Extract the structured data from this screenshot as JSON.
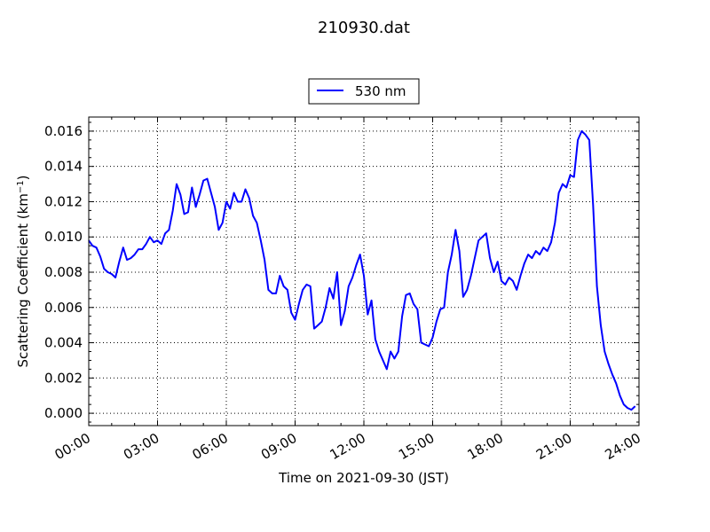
{
  "chart_data": {
    "type": "line",
    "title": "210930.dat",
    "xlabel": "Time on 2021-09-30 (JST)",
    "ylabel": "Scattering Coefficient (km",
    "ylabel_exponent": "−1",
    "ylabel_close": ")",
    "xlim": [
      "00:00",
      "24:00"
    ],
    "ylim": [
      -0.0007,
      0.0168
    ],
    "x_ticks": [
      "00:00",
      "03:00",
      "06:00",
      "09:00",
      "12:00",
      "15:00",
      "18:00",
      "21:00",
      "24:00"
    ],
    "y_ticks": [
      "0.000",
      "0.002",
      "0.004",
      "0.006",
      "0.008",
      "0.010",
      "0.012",
      "0.014",
      "0.016"
    ],
    "grid": true,
    "legend_position": "top-center",
    "series": [
      {
        "name": "530 nm",
        "color": "#0000ff",
        "x": [
          "00:00",
          "00:10",
          "00:20",
          "00:30",
          "00:40",
          "00:50",
          "01:00",
          "01:10",
          "01:20",
          "01:30",
          "01:40",
          "01:50",
          "02:00",
          "02:10",
          "02:20",
          "02:30",
          "02:40",
          "02:50",
          "03:00",
          "03:10",
          "03:20",
          "03:30",
          "03:40",
          "03:50",
          "04:00",
          "04:10",
          "04:20",
          "04:30",
          "04:40",
          "04:50",
          "05:00",
          "05:10",
          "05:20",
          "05:30",
          "05:40",
          "05:50",
          "06:00",
          "06:10",
          "06:20",
          "06:30",
          "06:40",
          "06:50",
          "07:00",
          "07:10",
          "07:20",
          "07:30",
          "07:40",
          "07:50",
          "08:00",
          "08:10",
          "08:20",
          "08:30",
          "08:40",
          "08:50",
          "09:00",
          "09:10",
          "09:20",
          "09:30",
          "09:40",
          "09:50",
          "10:00",
          "10:10",
          "10:20",
          "10:30",
          "10:40",
          "10:50",
          "11:00",
          "11:10",
          "11:20",
          "11:30",
          "11:40",
          "11:50",
          "12:00",
          "12:10",
          "12:20",
          "12:30",
          "12:40",
          "12:50",
          "13:00",
          "13:10",
          "13:20",
          "13:30",
          "13:40",
          "13:50",
          "14:00",
          "14:10",
          "14:20",
          "14:30",
          "14:40",
          "14:50",
          "15:00",
          "15:10",
          "15:20",
          "15:30",
          "15:40",
          "15:50",
          "16:00",
          "16:10",
          "16:20",
          "16:30",
          "16:40",
          "16:50",
          "17:00",
          "17:10",
          "17:20",
          "17:30",
          "17:40",
          "17:50",
          "18:00",
          "18:10",
          "18:20",
          "18:30",
          "18:40",
          "18:50",
          "19:00",
          "19:10",
          "19:20",
          "19:30",
          "19:40",
          "19:50",
          "20:00",
          "20:10",
          "20:20",
          "20:30",
          "20:40",
          "20:50",
          "21:00",
          "21:10",
          "21:20",
          "21:30",
          "21:40",
          "21:50",
          "22:00",
          "22:10",
          "22:20",
          "22:30",
          "22:40",
          "22:50",
          "23:00",
          "23:10",
          "23:20",
          "23:30",
          "23:40",
          "23:50"
        ],
        "y": [
          0.0098,
          0.0095,
          0.0094,
          0.0089,
          0.0082,
          0.008,
          0.0079,
          0.0077,
          0.0086,
          0.0094,
          0.0087,
          0.0088,
          0.009,
          0.0093,
          0.0093,
          0.0096,
          0.01,
          0.0097,
          0.0098,
          0.0096,
          0.0102,
          0.0104,
          0.0115,
          0.013,
          0.0124,
          0.0113,
          0.0114,
          0.0128,
          0.0117,
          0.0124,
          0.0132,
          0.0133,
          0.0125,
          0.0117,
          0.0104,
          0.0108,
          0.012,
          0.0116,
          0.0125,
          0.012,
          0.012,
          0.0127,
          0.0122,
          0.0112,
          0.0108,
          0.0098,
          0.0087,
          0.007,
          0.0068,
          0.0068,
          0.0078,
          0.0072,
          0.007,
          0.0057,
          0.0053,
          0.0062,
          0.007,
          0.0073,
          0.0072,
          0.0048,
          0.005,
          0.0052,
          0.006,
          0.0071,
          0.0065,
          0.008,
          0.005,
          0.0058,
          0.0072,
          0.0077,
          0.0084,
          0.009,
          0.0078,
          0.0056,
          0.0064,
          0.0042,
          0.0035,
          0.003,
          0.0025,
          0.0035,
          0.0031,
          0.0035,
          0.0055,
          0.0067,
          0.0068,
          0.0062,
          0.0059,
          0.004,
          0.0039,
          0.0038,
          0.0043,
          0.0052,
          0.0059,
          0.006,
          0.008,
          0.009,
          0.0104,
          0.0092,
          0.0066,
          0.007,
          0.0078,
          0.0088,
          0.0098,
          0.01,
          0.0102,
          0.0088,
          0.008,
          0.0086,
          0.0075,
          0.0073,
          0.0077,
          0.0075,
          0.007,
          0.0078,
          0.0085,
          0.009,
          0.0088,
          0.0092,
          0.009,
          0.0094,
          0.0092,
          0.0097,
          0.0108,
          0.0125,
          0.013,
          0.0128,
          0.0135,
          0.0134,
          0.0155,
          0.016,
          0.0158,
          0.0155,
          0.0118,
          0.0072,
          0.005,
          0.0035,
          0.0028,
          0.0022,
          0.0017,
          0.001,
          0.0005,
          0.0003,
          0.0002,
          0.0004
        ]
      }
    ]
  }
}
